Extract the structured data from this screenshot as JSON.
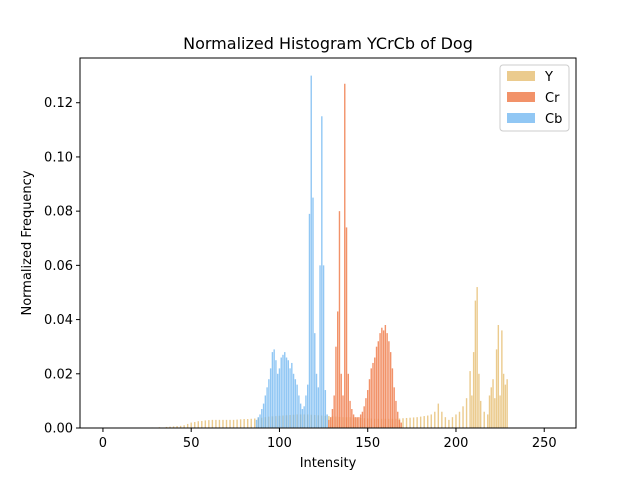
{
  "chart_data": {
    "type": "bar",
    "title": "Normalized Histogram YCrCb of Dog",
    "xlabel": "Intensity",
    "ylabel": "Normalized Frequency",
    "xlim": [
      -13,
      268
    ],
    "ylim": [
      0,
      0.1365
    ],
    "xticks": [
      0,
      50,
      100,
      150,
      200,
      250
    ],
    "yticks": [
      0.0,
      0.02,
      0.04,
      0.06,
      0.08,
      0.1,
      0.12
    ],
    "ytick_labels": [
      "0.00",
      "0.02",
      "0.04",
      "0.06",
      "0.08",
      "0.10",
      "0.12"
    ],
    "xtick_labels": [
      "0",
      "50",
      "100",
      "150",
      "200",
      "250"
    ],
    "legend_position": "top-right",
    "series": [
      {
        "name": "Y",
        "color": "#e8c27a",
        "opacity": 0.85,
        "points": [
          [
            28,
            0.0002
          ],
          [
            32,
            0.0003
          ],
          [
            36,
            0.0004
          ],
          [
            38,
            0.0005
          ],
          [
            40,
            0.0006
          ],
          [
            42,
            0.0007
          ],
          [
            44,
            0.0008
          ],
          [
            46,
            0.001
          ],
          [
            48,
            0.0015
          ],
          [
            50,
            0.002
          ],
          [
            52,
            0.0022
          ],
          [
            54,
            0.0025
          ],
          [
            56,
            0.0026
          ],
          [
            58,
            0.0028
          ],
          [
            60,
            0.0029
          ],
          [
            62,
            0.003
          ],
          [
            64,
            0.003
          ],
          [
            66,
            0.003
          ],
          [
            68,
            0.003
          ],
          [
            70,
            0.003
          ],
          [
            72,
            0.003
          ],
          [
            74,
            0.003
          ],
          [
            76,
            0.0031
          ],
          [
            78,
            0.0032
          ],
          [
            80,
            0.0033
          ],
          [
            82,
            0.0033
          ],
          [
            84,
            0.0034
          ],
          [
            86,
            0.0035
          ],
          [
            88,
            0.0036
          ],
          [
            90,
            0.0038
          ],
          [
            92,
            0.004
          ],
          [
            94,
            0.0042
          ],
          [
            96,
            0.0043
          ],
          [
            98,
            0.0044
          ],
          [
            100,
            0.0045
          ],
          [
            102,
            0.0046
          ],
          [
            104,
            0.0047
          ],
          [
            106,
            0.0048
          ],
          [
            108,
            0.0049
          ],
          [
            110,
            0.005
          ],
          [
            112,
            0.005
          ],
          [
            114,
            0.005
          ],
          [
            116,
            0.005
          ],
          [
            118,
            0.0049
          ],
          [
            120,
            0.0048
          ],
          [
            122,
            0.0047
          ],
          [
            124,
            0.0046
          ],
          [
            126,
            0.0045
          ],
          [
            128,
            0.0044
          ],
          [
            130,
            0.0043
          ],
          [
            132,
            0.0042
          ],
          [
            134,
            0.0041
          ],
          [
            136,
            0.004
          ],
          [
            138,
            0.004
          ],
          [
            140,
            0.004
          ],
          [
            142,
            0.0039
          ],
          [
            144,
            0.0038
          ],
          [
            146,
            0.0037
          ],
          [
            148,
            0.0036
          ],
          [
            150,
            0.0035
          ],
          [
            152,
            0.0035
          ],
          [
            154,
            0.0034
          ],
          [
            156,
            0.0034
          ],
          [
            158,
            0.0034
          ],
          [
            160,
            0.0034
          ],
          [
            162,
            0.0034
          ],
          [
            164,
            0.0034
          ],
          [
            166,
            0.0034
          ],
          [
            168,
            0.0035
          ],
          [
            170,
            0.0036
          ],
          [
            172,
            0.0037
          ],
          [
            174,
            0.0038
          ],
          [
            176,
            0.0039
          ],
          [
            178,
            0.004
          ],
          [
            180,
            0.0042
          ],
          [
            182,
            0.0044
          ],
          [
            184,
            0.0046
          ],
          [
            186,
            0.005
          ],
          [
            188,
            0.006
          ],
          [
            190,
            0.009
          ],
          [
            192,
            0.006
          ],
          [
            194,
            0.004
          ],
          [
            196,
            0.003
          ],
          [
            198,
            0.004
          ],
          [
            200,
            0.005
          ],
          [
            202,
            0.006
          ],
          [
            204,
            0.008
          ],
          [
            206,
            0.011
          ],
          [
            208,
            0.021
          ],
          [
            209,
            0.012
          ],
          [
            210,
            0.028
          ],
          [
            211,
            0.047
          ],
          [
            212,
            0.052
          ],
          [
            213,
            0.02
          ],
          [
            214,
            0.01
          ],
          [
            216,
            0.006
          ],
          [
            218,
            0.005
          ],
          [
            219,
            0.012
          ],
          [
            220,
            0.015
          ],
          [
            221,
            0.018
          ],
          [
            222,
            0.011
          ],
          [
            223,
            0.029
          ],
          [
            224,
            0.038
          ],
          [
            225,
            0.012
          ],
          [
            226,
            0.036
          ],
          [
            227,
            0.02
          ],
          [
            228,
            0.016
          ],
          [
            229,
            0.018
          ]
        ]
      },
      {
        "name": "Cr",
        "color": "#f07f4f",
        "opacity": 0.85,
        "points": [
          [
            128,
            0.003
          ],
          [
            129,
            0.004
          ],
          [
            130,
            0.007
          ],
          [
            131,
            0.012
          ],
          [
            132,
            0.03
          ],
          [
            133,
            0.043
          ],
          [
            134,
            0.08
          ],
          [
            135,
            0.02
          ],
          [
            136,
            0.012
          ],
          [
            137,
            0.127
          ],
          [
            138,
            0.074
          ],
          [
            139,
            0.02
          ],
          [
            140,
            0.01
          ],
          [
            141,
            0.007
          ],
          [
            142,
            0.005
          ],
          [
            143,
            0.004
          ],
          [
            144,
            0.004
          ],
          [
            145,
            0.004
          ],
          [
            146,
            0.005
          ],
          [
            147,
            0.006
          ],
          [
            148,
            0.008
          ],
          [
            149,
            0.011
          ],
          [
            150,
            0.014
          ],
          [
            151,
            0.018
          ],
          [
            152,
            0.022
          ],
          [
            153,
            0.024
          ],
          [
            154,
            0.026
          ],
          [
            155,
            0.03
          ],
          [
            156,
            0.032
          ],
          [
            157,
            0.035
          ],
          [
            158,
            0.037
          ],
          [
            159,
            0.036
          ],
          [
            160,
            0.038
          ],
          [
            161,
            0.035
          ],
          [
            162,
            0.032
          ],
          [
            163,
            0.028
          ],
          [
            164,
            0.022
          ],
          [
            165,
            0.015
          ],
          [
            166,
            0.01
          ],
          [
            167,
            0.006
          ],
          [
            168,
            0.003
          ],
          [
            169,
            0.002
          ]
        ]
      },
      {
        "name": "Cb",
        "color": "#6cb4f0",
        "opacity": 0.75,
        "points": [
          [
            87,
            0.003
          ],
          [
            88,
            0.004
          ],
          [
            89,
            0.005
          ],
          [
            90,
            0.007
          ],
          [
            91,
            0.009
          ],
          [
            92,
            0.012
          ],
          [
            93,
            0.015
          ],
          [
            94,
            0.018
          ],
          [
            95,
            0.022
          ],
          [
            96,
            0.028
          ],
          [
            97,
            0.029
          ],
          [
            98,
            0.025
          ],
          [
            99,
            0.02
          ],
          [
            100,
            0.022
          ],
          [
            101,
            0.026
          ],
          [
            102,
            0.027
          ],
          [
            103,
            0.028
          ],
          [
            104,
            0.026
          ],
          [
            105,
            0.025
          ],
          [
            106,
            0.022
          ],
          [
            107,
            0.024
          ],
          [
            108,
            0.02
          ],
          [
            109,
            0.018
          ],
          [
            110,
            0.016
          ],
          [
            111,
            0.012
          ],
          [
            112,
            0.009
          ],
          [
            113,
            0.007
          ],
          [
            114,
            0.008
          ],
          [
            115,
            0.012
          ],
          [
            116,
            0.016
          ],
          [
            117,
            0.079
          ],
          [
            118,
            0.13
          ],
          [
            119,
            0.085
          ],
          [
            120,
            0.035
          ],
          [
            121,
            0.02
          ],
          [
            122,
            0.015
          ],
          [
            123,
            0.06
          ],
          [
            124,
            0.115
          ],
          [
            125,
            0.06
          ],
          [
            126,
            0.014
          ],
          [
            127,
            0.005
          ]
        ]
      }
    ]
  }
}
